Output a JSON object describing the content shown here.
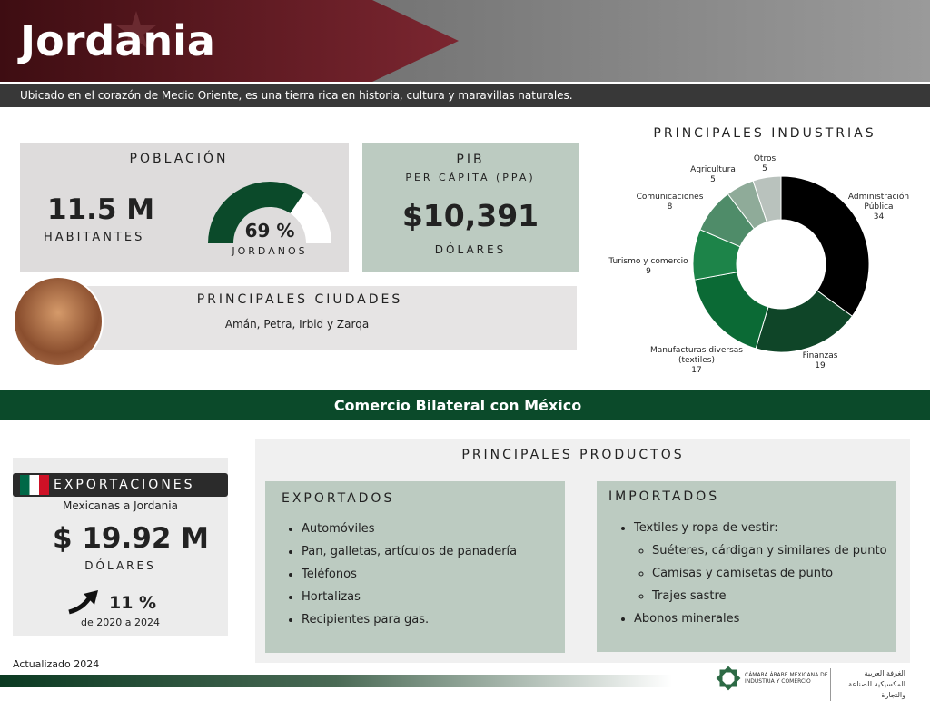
{
  "header": {
    "title": "Jordania",
    "subtitle": "Ubicado en el corazón de Medio Oriente, es una tierra rica en historia, cultura y maravillas naturales."
  },
  "poblacion": {
    "title": "POBLACIÓN",
    "value": "11.5 M",
    "unit": "HABITANTES",
    "share": 69,
    "share_label": "69 %",
    "share_caption": "JORDANOS"
  },
  "pib": {
    "title": "PIB",
    "subtitle": "PER CÁPITA (PPA)",
    "value": "$10,391",
    "unit": "DÓLARES"
  },
  "ciudades": {
    "title": "PRINCIPALES CIUDADES",
    "text": "Amán, Petra, Irbid y Zarqa"
  },
  "chart_data": {
    "type": "pie",
    "title": "PRINCIPALES INDUSTRIAS",
    "categories": [
      "Administración Pública",
      "Finanzas",
      "Manufacturas diversas (textiles)",
      "Turismo y comercio",
      "Comunicaciones",
      "Agricultura",
      "Otros"
    ],
    "values": [
      34,
      19,
      17,
      9,
      8,
      5,
      5
    ],
    "colors": [
      "#000000",
      "#0f4528",
      "#0b6a35",
      "#1d8449",
      "#4f8c69",
      "#8fab99",
      "#b9c2bd"
    ]
  },
  "banner": "Comercio Bilateral con México",
  "exportaciones": {
    "title": "EXPORTACIONES",
    "subtitle": "Mexicanas a Jordania",
    "value": "$ 19.92 M",
    "unit": "DÓLARES",
    "growth": "11 %",
    "period": "de 2020 a 2024"
  },
  "productos": {
    "title": "PRINCIPALES PRODUCTOS",
    "exportados": {
      "title": "EXPORTADOS",
      "items": [
        "Automóviles",
        "Pan, galletas, artículos de panadería",
        "Teléfonos",
        "Hortalizas",
        "Recipientes para gas."
      ]
    },
    "importados": {
      "title": "IMPORTADOS",
      "items": [
        "Textiles y ropa de vestir:",
        "Suéteres, cárdigan y similares de punto",
        "Camisas y camisetas de punto",
        "Trajes sastre",
        "Abonos minerales"
      ]
    }
  },
  "footer": {
    "updated": "Actualizado 2024",
    "org": "CÁMARA ÁRABE MEXICANA DE INDUSTRIA Y COMERCIO",
    "org_ar": "الغرفة العربية المكسيكية للصناعة والتجارة"
  }
}
